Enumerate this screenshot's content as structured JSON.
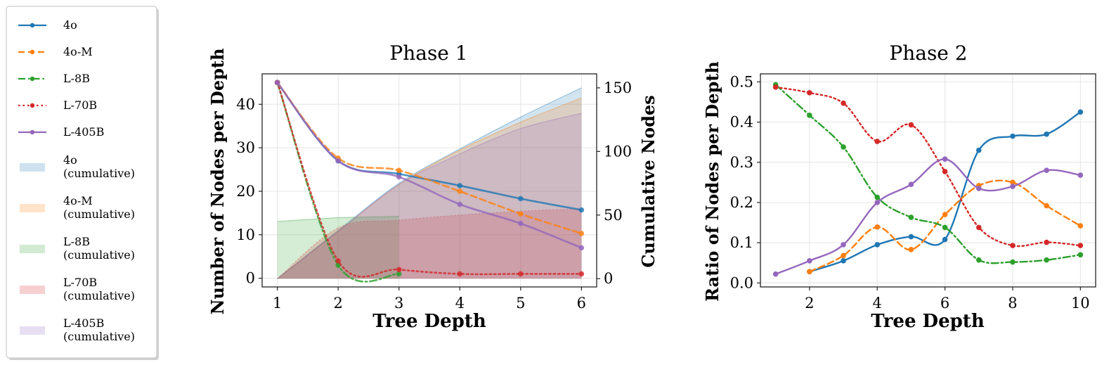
{
  "legend": {
    "lines": [
      {
        "label": "4o",
        "color": "#1f77b4",
        "dash": "solid"
      },
      {
        "label": "4o-M",
        "color": "#ff7f0e",
        "dash": "dashed"
      },
      {
        "label": "L-8B",
        "color": "#2ca02c",
        "dash": "dashdot"
      },
      {
        "label": "L-70B",
        "color": "#d62728",
        "dash": "dotted"
      },
      {
        "label": "L-405B",
        "color": "#9467bd",
        "dash": "solid"
      }
    ],
    "patches": [
      {
        "label1": "4o",
        "label2": "(cumulative)",
        "color": "#1f77b4"
      },
      {
        "label1": "4o-M",
        "label2": "(cumulative)",
        "color": "#ff7f0e"
      },
      {
        "label1": "L-8B",
        "label2": "(cumulative)",
        "color": "#2ca02c"
      },
      {
        "label1": "L-70B",
        "label2": "(cumulative)",
        "color": "#d62728"
      },
      {
        "label1": "L-405B",
        "label2": "(cumulative)",
        "color": "#9467bd"
      }
    ]
  },
  "chart_data": [
    {
      "type": "line",
      "title": "Phase 1",
      "xlabel": "Tree Depth",
      "ylabel": "Number of Nodes per Depth",
      "y2label": "Cumulative Nodes",
      "xlim": [
        0.75,
        6.25
      ],
      "ylim": [
        -2,
        47
      ],
      "y2lim": [
        -6.5,
        161
      ],
      "xticks": [
        "1",
        "2",
        "3",
        "4",
        "5",
        "6"
      ],
      "yticks": [
        "0",
        "10",
        "20",
        "30",
        "40"
      ],
      "y2ticks": [
        "0",
        "50",
        "100",
        "150"
      ],
      "series": [
        {
          "name": "4o",
          "color": "#1f77b4",
          "dash": "solid",
          "x": [
            1,
            2,
            3,
            4,
            5,
            6
          ],
          "values": [
            45,
            27,
            24,
            21.3,
            18.3,
            15.7
          ]
        },
        {
          "name": "4o-M",
          "color": "#ff7f0e",
          "dash": "dashed",
          "x": [
            1,
            2,
            3,
            4,
            5,
            6
          ],
          "values": [
            45,
            27.6,
            24.8,
            20,
            14.8,
            10.3
          ]
        },
        {
          "name": "L-8B",
          "color": "#2ca02c",
          "dash": "dashdot",
          "x": [
            1,
            2,
            3
          ],
          "values": [
            45,
            3,
            1
          ]
        },
        {
          "name": "L-70B",
          "color": "#d62728",
          "dash": "dotted",
          "x": [
            1,
            2,
            3,
            4,
            5,
            6
          ],
          "values": [
            45,
            4,
            2,
            1,
            1,
            1
          ]
        },
        {
          "name": "L-405B",
          "color": "#9467bd",
          "dash": "solid",
          "x": [
            1,
            2,
            3,
            4,
            5,
            6
          ],
          "values": [
            45,
            27,
            23.3,
            17,
            12.6,
            7
          ]
        }
      ],
      "cumulative": [
        {
          "name": "4o (cumulative)",
          "color": "#1f77b4",
          "x": [
            1,
            2,
            3,
            4,
            5,
            6
          ],
          "values": [
            0,
            38,
            75,
            102,
            127,
            150
          ]
        },
        {
          "name": "4o-M (cumulative)",
          "color": "#ff7f0e",
          "x": [
            1,
            2,
            3,
            4,
            5,
            6
          ],
          "values": [
            0,
            37,
            74,
            101,
            123,
            142
          ]
        },
        {
          "name": "L-8B (cumulative)",
          "color": "#2ca02c",
          "x": [
            1,
            2,
            3
          ],
          "values": [
            45,
            48,
            49
          ]
        },
        {
          "name": "L-70B (cumulative)",
          "color": "#d62728",
          "x": [
            1,
            2,
            3,
            4,
            5,
            6
          ],
          "values": [
            0,
            40,
            46,
            50,
            53,
            55
          ]
        },
        {
          "name": "L-405B (cumulative)",
          "color": "#9467bd",
          "x": [
            1,
            2,
            3,
            4,
            5,
            6
          ],
          "values": [
            0,
            37,
            74,
            98,
            118,
            130
          ]
        }
      ]
    },
    {
      "type": "line",
      "title": "Phase 2",
      "xlabel": "Tree Depth",
      "ylabel": "Ratio of Nodes per Depth",
      "xlim": [
        0.55,
        10.45
      ],
      "ylim": [
        -0.01,
        0.52
      ],
      "xticks": [
        "2",
        "4",
        "6",
        "8",
        "10"
      ],
      "yticks": [
        "0.0",
        "0.1",
        "0.2",
        "0.3",
        "0.4",
        "0.5"
      ],
      "series": [
        {
          "name": "4o",
          "color": "#1f77b4",
          "dash": "solid",
          "x": [
            2,
            3,
            4,
            5,
            6,
            7,
            8,
            9,
            10
          ],
          "values": [
            0.028,
            0.055,
            0.095,
            0.115,
            0.108,
            0.33,
            0.365,
            0.37,
            0.425
          ]
        },
        {
          "name": "4o-M",
          "color": "#ff7f0e",
          "dash": "dashed",
          "x": [
            2,
            3,
            4,
            5,
            6,
            7,
            8,
            9,
            10
          ],
          "values": [
            0.028,
            0.068,
            0.139,
            0.083,
            0.17,
            0.242,
            0.25,
            0.192,
            0.142
          ]
        },
        {
          "name": "L-8B",
          "color": "#2ca02c",
          "dash": "dashdot",
          "x": [
            1,
            2,
            3,
            4,
            5,
            6,
            7,
            8,
            9,
            10
          ],
          "values": [
            0.493,
            0.417,
            0.338,
            0.213,
            0.163,
            0.138,
            0.057,
            0.052,
            0.057,
            0.07
          ]
        },
        {
          "name": "L-70B",
          "color": "#d62728",
          "dash": "dotted",
          "x": [
            1,
            2,
            3,
            4,
            5,
            6,
            7,
            8,
            9,
            10
          ],
          "values": [
            0.487,
            0.473,
            0.447,
            0.352,
            0.393,
            0.277,
            0.138,
            0.093,
            0.101,
            0.093
          ]
        },
        {
          "name": "L-405B",
          "color": "#9467bd",
          "dash": "solid",
          "x": [
            1,
            2,
            3,
            4,
            5,
            6,
            7,
            8,
            9,
            10
          ],
          "values": [
            0.022,
            0.055,
            0.095,
            0.2,
            0.245,
            0.308,
            0.235,
            0.24,
            0.28,
            0.268
          ]
        }
      ]
    }
  ]
}
